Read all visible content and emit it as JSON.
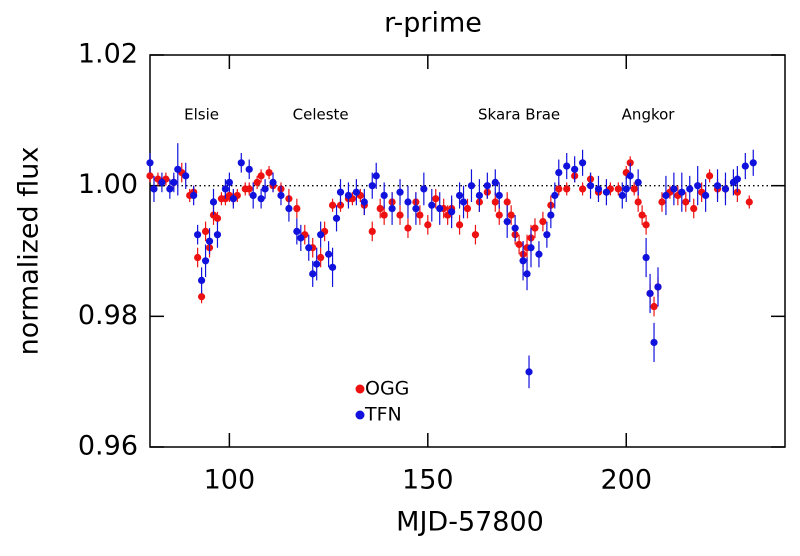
{
  "chart_data": {
    "type": "scatter",
    "title": "r-prime",
    "x_label": "MJD-57800",
    "y_label": "normalized flux",
    "xlim": [
      80,
      240
    ],
    "ylim": [
      0.96,
      1.02
    ],
    "xticks": [
      100,
      150,
      200
    ],
    "yticks": [
      0.96,
      0.98,
      {
        "value": 1,
        "label": "1.00"
      },
      1.02
    ],
    "hline": 1,
    "legend": "lower left",
    "annotations": [
      {
        "text": "Elsie",
        "x": 93,
        "y": 1.0108
      },
      {
        "text": "Celeste",
        "x": 123,
        "y": 1.0108
      },
      {
        "text": "Skara Brae",
        "x": 173,
        "y": 1.0108
      },
      {
        "text": "Angkor",
        "x": 205.5,
        "y": 1.0108
      }
    ],
    "series": [
      {
        "name": "OGG",
        "color": "#ee1111",
        "x": [
          80,
          82,
          84,
          86,
          88,
          90,
          91,
          92,
          93,
          94,
          95,
          96,
          97,
          98,
          99,
          100,
          101,
          102,
          104,
          105,
          107,
          108,
          110,
          111,
          113,
          115,
          117,
          119,
          121,
          123,
          124,
          126,
          128,
          130,
          131,
          133,
          134,
          136,
          138,
          139,
          141,
          143,
          145,
          147,
          148,
          150,
          152,
          154,
          155,
          156,
          158,
          160,
          162,
          163,
          165,
          167,
          168,
          170,
          171,
          172,
          173,
          174,
          175,
          176,
          177,
          179,
          181,
          183,
          185,
          187,
          189,
          191,
          193,
          196,
          198,
          200,
          201,
          202,
          203,
          204,
          205,
          206,
          207,
          208,
          209,
          211,
          213,
          215,
          217,
          219,
          221,
          223,
          225,
          228,
          231
        ],
        "values": [
          1.0015,
          1.001,
          1.001,
          1.0005,
          1.002,
          0.9985,
          0.999,
          0.989,
          0.983,
          0.993,
          0.9905,
          0.9955,
          0.995,
          0.998,
          0.998,
          0.9985,
          0.998,
          0.9985,
          0.9995,
          0.9995,
          1.0005,
          1.0015,
          1.002,
          1.0,
          0.9995,
          0.998,
          0.9965,
          0.9925,
          0.9905,
          0.989,
          0.993,
          0.997,
          0.997,
          0.998,
          0.998,
          0.9985,
          0.997,
          0.993,
          0.9965,
          0.9955,
          0.9975,
          0.9955,
          0.9935,
          0.9975,
          0.9955,
          0.994,
          0.998,
          0.9965,
          0.9955,
          0.9965,
          0.994,
          0.9965,
          0.9925,
          0.9975,
          0.999,
          0.9975,
          0.9955,
          0.9975,
          0.9955,
          0.9925,
          0.991,
          0.9895,
          0.9905,
          0.992,
          0.9935,
          0.9945,
          0.997,
          0.9995,
          0.9995,
          1.0015,
          0.9995,
          1.001,
          0.999,
          0.9995,
          0.9995,
          1.002,
          1.0035,
          0.9995,
          0.9975,
          0.9955,
          0.994,
          0.9835,
          0.9815,
          0.9845,
          0.9975,
          0.999,
          0.9985,
          0.9975,
          0.9965,
          0.999,
          1.0015,
          0.9995,
          0.9995,
          0.999,
          0.9975
        ],
        "errors": [
          0.001,
          0.001,
          0.001,
          0.001,
          0.0015,
          0.001,
          0.001,
          0.0015,
          0.001,
          0.0015,
          0.0015,
          0.0015,
          0.001,
          0.001,
          0.001,
          0.001,
          0.001,
          0.001,
          0.001,
          0.001,
          0.001,
          0.001,
          0.001,
          0.001,
          0.001,
          0.0015,
          0.0015,
          0.0015,
          0.0015,
          0.0015,
          0.0015,
          0.001,
          0.001,
          0.001,
          0.001,
          0.001,
          0.0015,
          0.0015,
          0.0015,
          0.0015,
          0.0015,
          0.0015,
          0.0015,
          0.0015,
          0.0015,
          0.0015,
          0.0015,
          0.0015,
          0.0015,
          0.0015,
          0.0015,
          0.0015,
          0.0015,
          0.0015,
          0.001,
          0.0015,
          0.0015,
          0.0015,
          0.0015,
          0.0015,
          0.0015,
          0.002,
          0.002,
          0.002,
          0.0015,
          0.0015,
          0.0015,
          0.001,
          0.001,
          0.001,
          0.001,
          0.001,
          0.001,
          0.001,
          0.001,
          0.001,
          0.001,
          0.001,
          0.0015,
          0.0015,
          0.0015,
          0.0015,
          0.0015,
          0.0015,
          0.0015,
          0.001,
          0.0015,
          0.0015,
          0.0015,
          0.0015,
          0.001,
          0.0015,
          0.0015,
          0.0015,
          0.001
        ]
      },
      {
        "name": "TFN",
        "color": "#1111dd",
        "x": [
          80,
          81,
          83,
          85,
          86,
          87,
          89,
          91,
          92,
          93,
          94,
          95,
          96,
          97,
          99,
          100,
          101,
          103,
          105,
          106,
          108,
          109,
          111,
          113,
          115,
          117,
          118,
          120,
          121,
          122,
          123,
          125,
          126,
          127,
          128,
          130,
          132,
          134,
          136,
          137,
          139,
          141,
          143,
          145,
          147,
          149,
          151,
          153,
          156,
          158,
          159,
          161,
          163,
          165,
          167,
          168,
          170,
          172,
          174,
          175,
          175.5,
          176,
          178,
          180,
          181,
          182,
          183,
          185,
          187,
          189,
          191,
          193,
          195,
          199,
          200,
          201,
          203,
          205,
          206,
          207,
          208,
          210,
          212,
          214,
          216,
          218,
          220,
          223,
          225,
          227,
          228,
          230,
          232
        ],
        "values": [
          1.0035,
          0.9995,
          1.0005,
          0.9995,
          1.0005,
          1.0025,
          1.0015,
          0.9985,
          0.9925,
          0.9855,
          0.9885,
          0.9915,
          0.9975,
          0.9925,
          0.9995,
          1.0005,
          0.998,
          1.0035,
          1.0025,
          0.9985,
          0.998,
          0.9995,
          1.0005,
          0.9985,
          0.9965,
          0.993,
          0.992,
          0.9905,
          0.9865,
          0.988,
          0.9925,
          0.9895,
          0.9875,
          0.995,
          0.999,
          0.9985,
          0.999,
          0.9975,
          1.0,
          1.0015,
          0.9985,
          0.9965,
          0.999,
          0.9975,
          0.9965,
          0.9995,
          0.997,
          0.9965,
          0.996,
          0.9985,
          0.9975,
          1.0,
          0.9985,
          1.0,
          1.0005,
          0.9985,
          0.9945,
          0.9935,
          0.9885,
          0.9865,
          0.9715,
          0.9905,
          0.9895,
          0.9925,
          0.9955,
          0.9985,
          1.002,
          1.003,
          1.0025,
          1.0035,
          1.0,
          0.9995,
          0.999,
          0.9985,
          0.9995,
          1.0015,
          1.0005,
          0.989,
          0.9835,
          0.976,
          0.9845,
          0.9985,
          0.9995,
          0.999,
          0.9995,
          1.0,
          0.9985,
          1.0,
          0.9995,
          1.0005,
          1.001,
          1.003,
          1.0035
        ],
        "errors": [
          0.0015,
          0.002,
          0.0015,
          0.0015,
          0.0015,
          0.004,
          0.002,
          0.0015,
          0.0015,
          0.002,
          0.0025,
          0.002,
          0.002,
          0.002,
          0.0015,
          0.0015,
          0.0015,
          0.0015,
          0.0015,
          0.002,
          0.0015,
          0.0015,
          0.0015,
          0.0015,
          0.002,
          0.002,
          0.002,
          0.002,
          0.002,
          0.0025,
          0.002,
          0.002,
          0.003,
          0.002,
          0.002,
          0.002,
          0.002,
          0.002,
          0.002,
          0.002,
          0.002,
          0.0025,
          0.002,
          0.0025,
          0.0025,
          0.0025,
          0.0025,
          0.0025,
          0.0025,
          0.002,
          0.0025,
          0.0025,
          0.0025,
          0.002,
          0.002,
          0.002,
          0.0025,
          0.002,
          0.003,
          0.0025,
          0.0025,
          0.003,
          0.002,
          0.002,
          0.002,
          0.002,
          0.002,
          0.002,
          0.002,
          0.002,
          0.002,
          0.002,
          0.002,
          0.002,
          0.002,
          0.002,
          0.002,
          0.003,
          0.003,
          0.003,
          0.003,
          0.003,
          0.0025,
          0.003,
          0.002,
          0.003,
          0.0025,
          0.0025,
          0.0025,
          0.002,
          0.002,
          0.002,
          0.002
        ]
      }
    ]
  }
}
